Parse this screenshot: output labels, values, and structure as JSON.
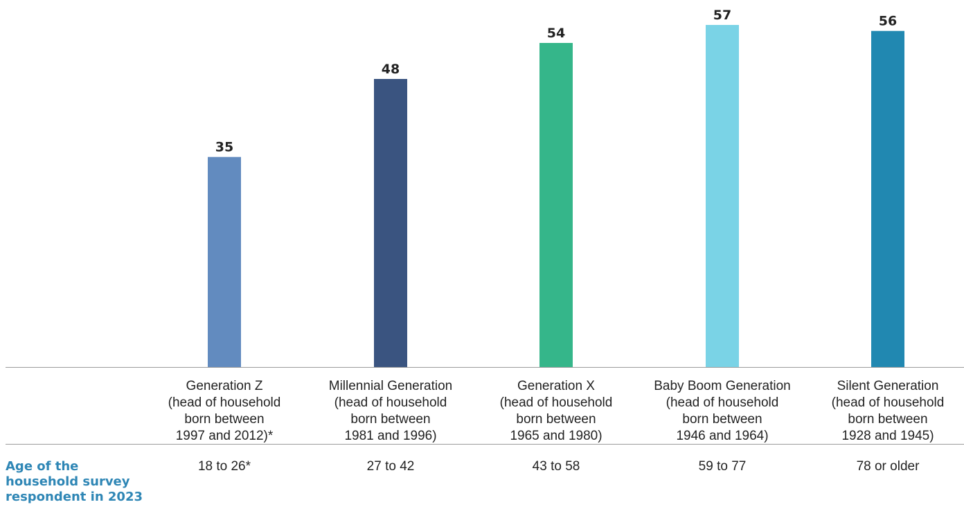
{
  "chart_data": {
    "type": "bar",
    "categories": [
      "Generation Z\n(head of household\nborn between\n1997 and 2012)*",
      "Millennial Generation\n(head of household\nborn between\n1981 and 1996)",
      "Generation X\n(head of household\nborn between\n1965 and 1980)",
      "Baby Boom Generation\n(head of household\nborn between\n1946 and 1964)",
      "Silent Generation\n(head of household\nborn between\n1928 and 1945)"
    ],
    "values": [
      35,
      48,
      54,
      57,
      56
    ],
    "value_labels": [
      "35",
      "48",
      "54",
      "57",
      "56"
    ],
    "bar_colors": [
      "#628bbf",
      "#3a5480",
      "#35b68a",
      "#7ad3e6",
      "#2188b1"
    ],
    "ylim": [
      0,
      57
    ],
    "grid": false,
    "legend": "none",
    "row_label": "Age of the\nhousehold survey\nrespondent in 2023",
    "row_label_color": "#2e86b5",
    "age_ranges": [
      "18 to 26*",
      "27 to 42",
      "43 to 58",
      "59 to 77",
      "78 or older"
    ]
  }
}
